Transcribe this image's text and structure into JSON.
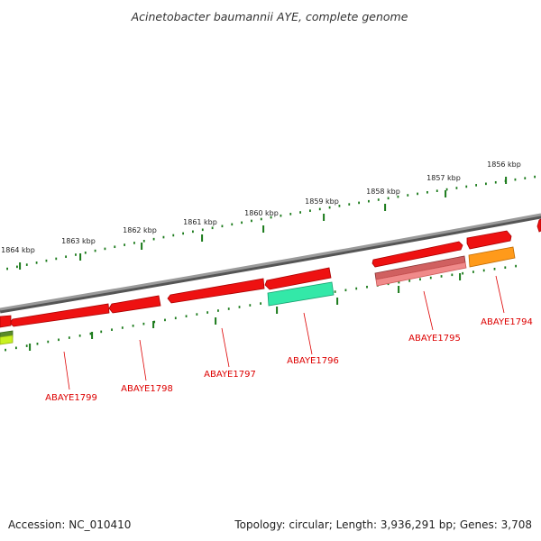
{
  "title": "Acinetobacter baumannii AYE, complete genome",
  "footer": {
    "accession": "Accession: NC_010410",
    "summary": "Topology: circular; Length: 3,936,291 bp; Genes: 3,708"
  },
  "colors": {
    "backbone": "#8a8a8a",
    "tick": "#1a7a1a",
    "gene_red": "#ee1111",
    "gene_pink": "#f08a8a",
    "gene_rose": "#d06060",
    "gene_green": "#33e8a8",
    "gene_orange": "#ff9a1a",
    "gene_yellowgreen": "#c8f020",
    "label": "#dd0000"
  },
  "ruler": {
    "outer_major_labels": [
      "1864 kbp",
      "1863 kbp",
      "1862 kbp",
      "1861 kbp",
      "1860 kbp",
      "1859 kbp",
      "1858 kbp",
      "1857 kbp",
      "1856 kbp"
    ]
  },
  "genes": [
    {
      "label": "ABAYE1794"
    },
    {
      "label": "ABAYE1795"
    },
    {
      "label": "ABAYE1796"
    },
    {
      "label": "ABAYE1797"
    },
    {
      "label": "ABAYE1798"
    },
    {
      "label": "ABAYE1799"
    }
  ]
}
